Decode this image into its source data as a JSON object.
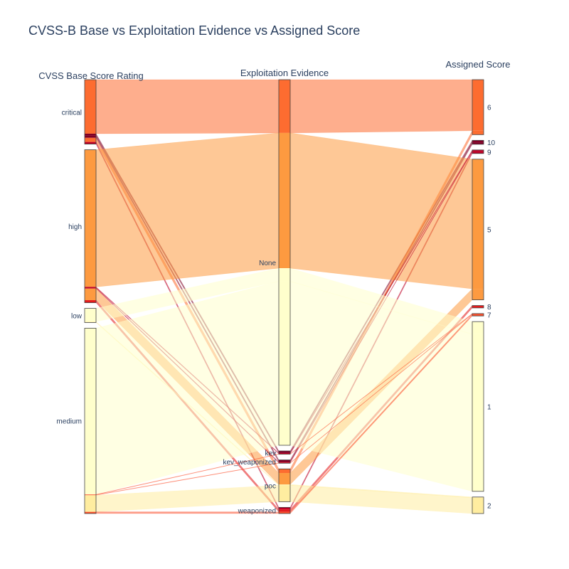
{
  "chart_data": {
    "type": "parallel_categories",
    "title": "CVSS-B Base vs Exploitation Evidence vs Assigned Score",
    "dimensions": [
      {
        "label": "CVSS Base Score Rating",
        "categories": [
          "critical",
          "high",
          "low",
          "medium"
        ]
      },
      {
        "label": "Exploitation Evidence",
        "categories": [
          "None",
          "kev",
          "kev_weaponized",
          "poc",
          "weaponized"
        ]
      },
      {
        "label": "Assigned Score",
        "categories": [
          "6",
          "10",
          "9",
          "5",
          "8",
          "7",
          "1",
          "2"
        ]
      }
    ],
    "colorscale": [
      "#ffffcc",
      "#ffeda0",
      "#fd8d3c",
      "#fc4e2a",
      "#bd0026",
      "#800026"
    ],
    "paths": [
      {
        "cvss": "critical",
        "evidence": "None",
        "score": "6",
        "count": 130,
        "color": "#fd6c30"
      },
      {
        "cvss": "critical",
        "evidence": "kev",
        "score": "10",
        "count": 5,
        "color": "#800026"
      },
      {
        "cvss": "critical",
        "evidence": "kev_weaponized",
        "score": "10",
        "count": 5,
        "color": "#800026"
      },
      {
        "cvss": "critical",
        "evidence": "poc",
        "score": "6",
        "count": 10,
        "color": "#fd6c30"
      },
      {
        "cvss": "critical",
        "evidence": "weaponized",
        "score": "9",
        "count": 5,
        "color": "#bd0026"
      },
      {
        "cvss": "high",
        "evidence": "None",
        "score": "5",
        "count": 330,
        "color": "#fd9a40"
      },
      {
        "cvss": "high",
        "evidence": "kev",
        "score": "9",
        "count": 2,
        "color": "#bd0026"
      },
      {
        "cvss": "high",
        "evidence": "kev_weaponized",
        "score": "9",
        "count": 2,
        "color": "#bd0026"
      },
      {
        "cvss": "high",
        "evidence": "poc",
        "score": "5",
        "count": 28,
        "color": "#fd9a40"
      },
      {
        "cvss": "high",
        "evidence": "weaponized",
        "score": "8",
        "count": 6,
        "color": "#e31a1c"
      },
      {
        "cvss": "low",
        "evidence": "None",
        "score": "1",
        "count": 32,
        "color": "#ffffcc"
      },
      {
        "cvss": "low",
        "evidence": "poc",
        "score": "2",
        "count": 2,
        "color": "#ffeda0"
      },
      {
        "cvss": "medium",
        "evidence": "None",
        "score": "1",
        "count": 400,
        "color": "#ffffcc"
      },
      {
        "cvss": "medium",
        "evidence": "kev",
        "score": "7",
        "count": 1,
        "color": "#fc4e2a"
      },
      {
        "cvss": "medium",
        "evidence": "kev_weaponized",
        "score": "7",
        "count": 1,
        "color": "#fc4e2a"
      },
      {
        "cvss": "medium",
        "evidence": "poc",
        "score": "2",
        "count": 40,
        "color": "#ffeda0"
      },
      {
        "cvss": "medium",
        "evidence": "weaponized",
        "score": "7",
        "count": 4,
        "color": "#fc4e2a"
      }
    ]
  }
}
